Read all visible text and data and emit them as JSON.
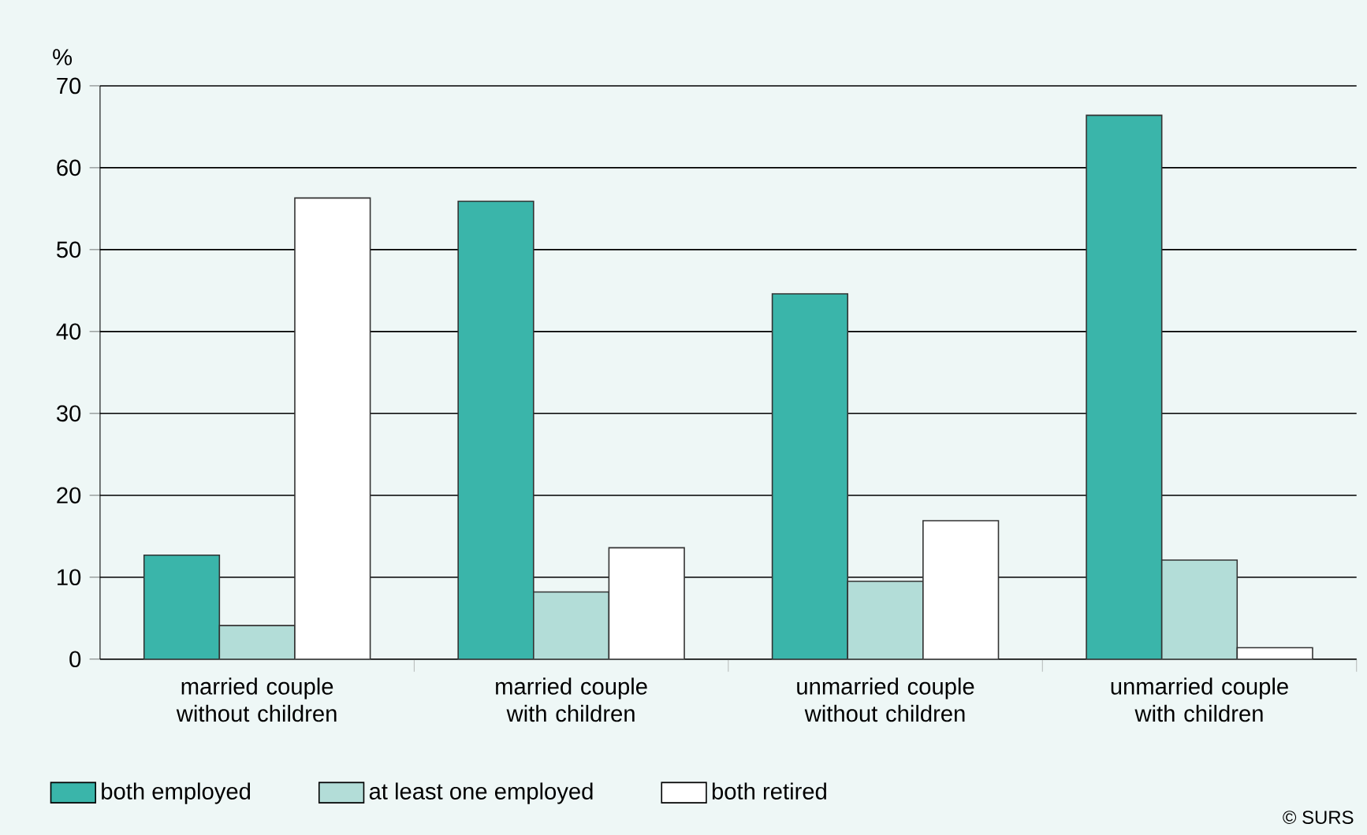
{
  "chart_data": {
    "type": "bar",
    "ylabel": "%",
    "categories": [
      "married couple without children",
      "married couple with children",
      "unmarried couple without children",
      "unmarried couple with children"
    ],
    "series": [
      {
        "name": "both employed",
        "color": "#3ab5aa",
        "values": [
          12.7,
          55.9,
          44.6,
          66.4
        ]
      },
      {
        "name": "at least one employed",
        "color": "#b3ddd8",
        "values": [
          4.1,
          8.2,
          9.5,
          12.1
        ]
      },
      {
        "name": "both retired",
        "color": "#ffffff",
        "values": [
          56.3,
          13.6,
          16.9,
          1.4
        ]
      }
    ],
    "ylim": [
      0,
      70
    ],
    "yticks": [
      0,
      10,
      20,
      30,
      40,
      50,
      60,
      70
    ],
    "grid": "y",
    "legend": "bottom",
    "annotations": [
      "© SURS"
    ]
  }
}
